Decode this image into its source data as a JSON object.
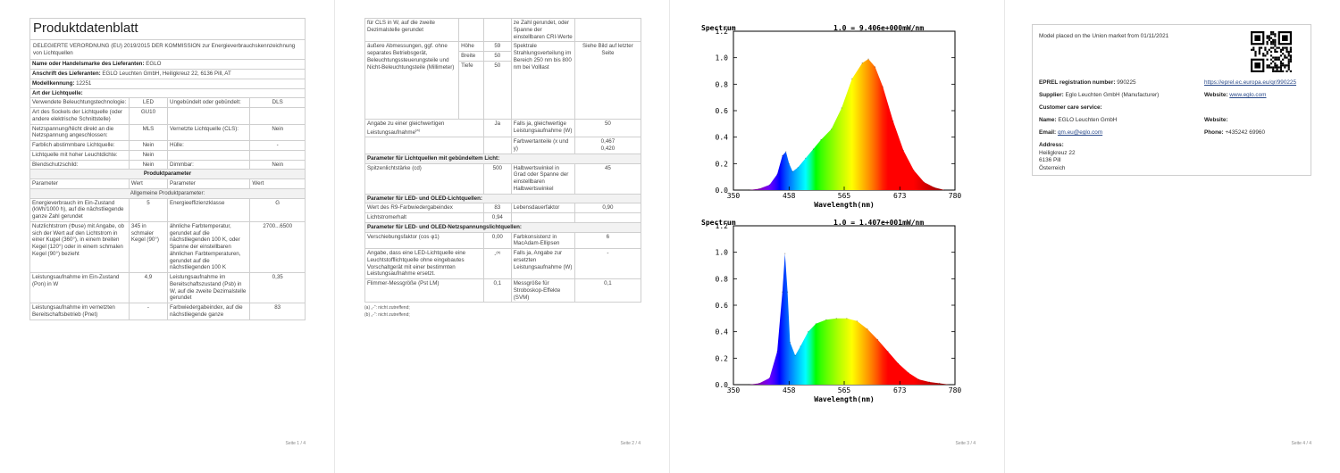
{
  "page1": {
    "title": "Produktdatenblatt",
    "subtitle": "DELEGIERTE VERORDNUNG (EU) 2019/2015 DER KOMMISSION zur Energieverbrauchskennzeichnung von Lichtquellen",
    "brand_label": "Name oder Handelsmarke des Lieferanten:",
    "brand_value": "EGLO",
    "address_label": "Anschrift des Lieferanten:",
    "address_value": "EGLO Leuchten GmbH, Heiligkreuz 22, 6136 Pill, AT",
    "model_label": "Modellkennung:",
    "model_value": "12251",
    "type_header": "Art der Lichtquelle:",
    "rows": [
      [
        "Verwendete Beleuchtungstechnologie:",
        "LED",
        "Ungebündelt oder gebündelt:",
        "DLS"
      ],
      [
        "Art des Sockels der Lichtquelle (oder andere elektrische Schnittstelle)",
        "GU10",
        "",
        ""
      ],
      [
        "Netzspannung/Nicht direkt an die Netzspannung angeschlossen:",
        "MLS",
        "Vernetzte Lichtquelle (CLS):",
        "Nein"
      ],
      [
        "Farblich abstimmbare Lichtquelle:",
        "Nein",
        "Hülle:",
        "-"
      ],
      [
        "Lichtquelle mit hoher Leuchtdichte:",
        "Nein",
        "",
        ""
      ],
      [
        "Blendschutzschild:",
        "Nein",
        "Dimmbar:",
        "Nein"
      ]
    ],
    "param_header": "Produktparameter",
    "param_cols": [
      "Parameter",
      "Wert",
      "Parameter",
      "Wert"
    ],
    "general_header": "Allgemeine Produktparameter:",
    "general_rows": [
      [
        "Energieverbrauch im Ein-Zustand (kWh/1000 h), auf die nächstliegende ganze Zahl gerundet",
        "5",
        "Energieeffizienzklasse",
        "G"
      ],
      [
        "Nutzlichtstrom (Φuse) mit Angabe, ob sich der Wert auf den Lichtstrom in einer Kugel (360°), in einem breiten Kegel (120°) oder in einem schmalen Kegel (90°) bezieht",
        "345 in schmaler Kegel (90°)",
        "ähnliche Farbtemperatur, gerundet auf die nächstliegenden 100 K, oder Spanne der einstellbaren ähnlichen Farbtemperaturen, gerundet auf die nächstliegenden 100 K",
        "2700...6500"
      ],
      [
        "Leistungsaufnahme im Ein-Zustand (Pon) in W",
        "4,9",
        "Leistungsaufnahme im Bereitschaftszustand (Psb) in W, auf die zweite Dezimalstelle gerundet",
        "0,35"
      ],
      [
        "Leistungsaufnahme im vernetzten Bereitschaftsbetrieb (Pnet)",
        "-",
        "Farbwiedergabeindex, auf die nächstliegende ganze",
        "83"
      ]
    ],
    "page_num": "Seite 1 / 4"
  },
  "page2": {
    "rows_top": [
      [
        "für CLS in W, auf die zweite Dezimalstelle gerundet",
        "",
        "",
        "ze Zahl gerundet, oder Spanne der einstellbaren CRI-Werte",
        ""
      ]
    ],
    "dims_label": "äußere Abmessungen, ggf. ohne separates Betriebsgerät, Beleuchtungssteuerungsteile und Nicht-Beleuchtungsteile (Millimeter)",
    "dims": [
      [
        "Höhe",
        "59"
      ],
      [
        "Breite",
        "50"
      ],
      [
        "Tiefe",
        "50"
      ]
    ],
    "spectral_label": "Spektrale Strahlungsverteilung im Bereich 250 nm bis 800 nm bei Volllast",
    "spectral_value": "Siehe Bild auf letzter Seite",
    "equiv_label": "Angabe zu einer gleichwertigen Leistungsaufnahme",
    "equiv_sup": "(a)",
    "equiv_value": "Ja",
    "equiv_power_label": "Falls ja, gleichwertige Leistungsaufnahme (W)",
    "equiv_power_value": "50",
    "chroma_label": "Farbwertanteile (x und y)",
    "chroma_value": "0,467\n0,420",
    "bundled_header": "Parameter für Lichtquellen mit gebündeltem Licht:",
    "peak_label": "Spitzenlichtstärke (cd)",
    "peak_value": "500",
    "beam_label": "Halbwertswinkel in Grad oder Spanne der einstellbaren Halbwertswinkel",
    "beam_value": "45",
    "led_header": "Parameter für LED- und OLED-Lichtquellen:",
    "r9_label": "Wert des R9-Farbwiedergabeindex",
    "r9_value": "83",
    "life_label": "Lebensdauerfaktor",
    "life_value": "0,90",
    "maint_label": "Lichtstromerhalt",
    "maint_value": "0,94",
    "mains_header": "Parameter für LED- und OLED-Netzspannungslichtquellen:",
    "cos_label": "Verschiebungsfaktor (cos φ1)",
    "cos_value": "0,00",
    "macadam_label": "Farbkonsistenz in MacAdam-Ellipsen",
    "macadam_value": "6",
    "replace_label": "Angabe, dass eine LED-Lichtquelle eine Leuchtstofflichtquelle ohne eingebautes Vorschaltgerät mit einer bestimmten Leistungsaufnahme ersetzt.",
    "replace_value": "-",
    "replace_sup": "(b)",
    "replace_power_label": "Falls ja, Angabe zur ersetzten Leistungsaufnahme (W)",
    "replace_power_value": "-",
    "flicker_label": "Flimmer-Messgröße (Pst LM)",
    "flicker_value": "0,1",
    "svm_label": "Messgröße für Stroboskop-Effekte (SVM)",
    "svm_value": "0,1",
    "foot_a": "(a) „-“: nicht zutreffend;",
    "foot_b": "(b) „-“: nicht zutreffend;",
    "page_num": "Seite 2 / 4"
  },
  "page3": {
    "chart1_title": "Spectrum",
    "chart1_caption": "1.0 = 9.406e+000mW/nm",
    "chart1_xlabel": "Wavelength(nm)",
    "chart2_title": "Spectrum",
    "chart2_caption": "1.0 = 1.407e+001mW/nm",
    "chart2_xlabel": "Wavelength(nm)",
    "page_num": "Seite 3 / 4"
  },
  "chart_data": [
    {
      "type": "area",
      "title": "Spectrum",
      "subtitle": "1.0 = 9.406e+000mW/nm",
      "xlabel": "Wavelength(nm)",
      "ylabel": "",
      "xlim": [
        350,
        780
      ],
      "ylim": [
        0.0,
        1.2
      ],
      "xticks": [
        "350",
        "458",
        "565",
        "673",
        "780"
      ],
      "yticks": [
        "0.0",
        "0.2",
        "0.4",
        "0.6",
        "0.8",
        "1.0",
        "1.2"
      ],
      "x": [
        380,
        400,
        420,
        435,
        445,
        452,
        458,
        465,
        475,
        490,
        505,
        520,
        540,
        560,
        580,
        600,
        612,
        625,
        640,
        660,
        680,
        700,
        720,
        740,
        760
      ],
      "y": [
        0.0,
        0.01,
        0.04,
        0.12,
        0.26,
        0.29,
        0.2,
        0.14,
        0.17,
        0.24,
        0.31,
        0.38,
        0.46,
        0.62,
        0.84,
        0.96,
        0.99,
        0.93,
        0.78,
        0.52,
        0.3,
        0.15,
        0.06,
        0.02,
        0.0
      ]
    },
    {
      "type": "area",
      "title": "Spectrum",
      "subtitle": "1.0 = 1.407e+001mW/nm",
      "xlabel": "Wavelength(nm)",
      "ylabel": "",
      "xlim": [
        350,
        780
      ],
      "ylim": [
        0.0,
        1.2
      ],
      "xticks": [
        "350",
        "458",
        "565",
        "673",
        "780"
      ],
      "yticks": [
        "0.0",
        "0.2",
        "0.4",
        "0.6",
        "0.8",
        "1.0",
        "1.2"
      ],
      "x": [
        380,
        400,
        420,
        435,
        445,
        450,
        455,
        460,
        470,
        480,
        495,
        510,
        530,
        550,
        570,
        590,
        610,
        630,
        650,
        670,
        690,
        710,
        730,
        750,
        770
      ],
      "y": [
        0.0,
        0.01,
        0.05,
        0.25,
        0.7,
        0.99,
        0.7,
        0.32,
        0.22,
        0.29,
        0.4,
        0.46,
        0.49,
        0.5,
        0.5,
        0.48,
        0.42,
        0.34,
        0.25,
        0.16,
        0.09,
        0.04,
        0.02,
        0.01,
        0.0
      ]
    }
  ],
  "page4": {
    "market": "Model placed on the Union market from 01/11/2021",
    "eprel_label": "EPREL registration number:",
    "eprel_value": "990225",
    "eprel_link": "https://eprel.ec.europa.eu/qr/990225",
    "supplier_label": "Supplier:",
    "supplier_value": "Eglo Leuchten GmbH (Manufacturer)",
    "website_label": "Website:",
    "website_value": "www.eglo.com",
    "care_label": "Customer care service:",
    "name_label": "Name:",
    "name_value": "EGLO Leuchten GmbH",
    "website2_label": "Website:",
    "email_label": "Email:",
    "email_value": "qm.eu@eglo.com",
    "phone_label": "Phone:",
    "phone_value": "+435242 69960",
    "address_label": "Address:",
    "address_lines": [
      "Heiligkreuz 22",
      "6136 Pill",
      "Österreich"
    ],
    "page_num": "Seite 4 / 4"
  }
}
